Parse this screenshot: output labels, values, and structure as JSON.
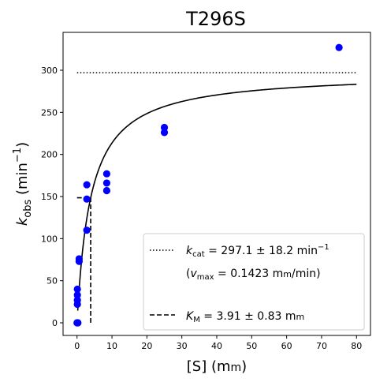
{
  "chart_data": {
    "type": "scatter",
    "title": "T296S",
    "xlabel": {
      "main": "[S] (m",
      "small": "m",
      "close": ")"
    },
    "ylabel": {
      "main": "k",
      "sub": "obs",
      "mid": " (min",
      "sup": "−1",
      "close": ")"
    },
    "xlim": [
      -4,
      84
    ],
    "ylim": [
      -15,
      345
    ],
    "x_ticks": [
      0,
      10,
      20,
      30,
      40,
      50,
      60,
      70,
      80
    ],
    "y_ticks": [
      0,
      50,
      100,
      150,
      200,
      250,
      300
    ],
    "grid": false,
    "legend_position": "lower-right",
    "kcat": 297.1,
    "km": 3.91,
    "curve_x_range": [
      0.2,
      80
    ],
    "colors": {
      "points": "#0000ff",
      "curve": "#000000"
    },
    "points": [
      {
        "x": 0,
        "y": 0
      },
      {
        "x": 0.1,
        "y": 22
      },
      {
        "x": 0.1,
        "y": 27
      },
      {
        "x": 0.1,
        "y": 33
      },
      {
        "x": 0.1,
        "y": 40
      },
      {
        "x": 0.25,
        "y": 0
      },
      {
        "x": 0.6,
        "y": 73
      },
      {
        "x": 0.6,
        "y": 76
      },
      {
        "x": 2.8,
        "y": 110
      },
      {
        "x": 2.8,
        "y": 147
      },
      {
        "x": 2.8,
        "y": 164
      },
      {
        "x": 8.5,
        "y": 157
      },
      {
        "x": 8.5,
        "y": 166
      },
      {
        "x": 8.5,
        "y": 177
      },
      {
        "x": 25,
        "y": 226
      },
      {
        "x": 25,
        "y": 232
      },
      {
        "x": 75,
        "y": 327
      }
    ],
    "legend": {
      "kcat": {
        "sym": "k",
        "sub": "cat",
        "text": " = 297.1 ± 18.2 min",
        "sup": "−1"
      },
      "vmax": {
        "open": "(",
        "sym": "v",
        "sub": "max",
        "text": " = 0.1423 m",
        "small": "m",
        "tail": "/min)"
      },
      "km": {
        "sym": "K",
        "sub": "M",
        "text": " = 3.91 ± 0.83 m",
        "small": "m"
      }
    }
  }
}
